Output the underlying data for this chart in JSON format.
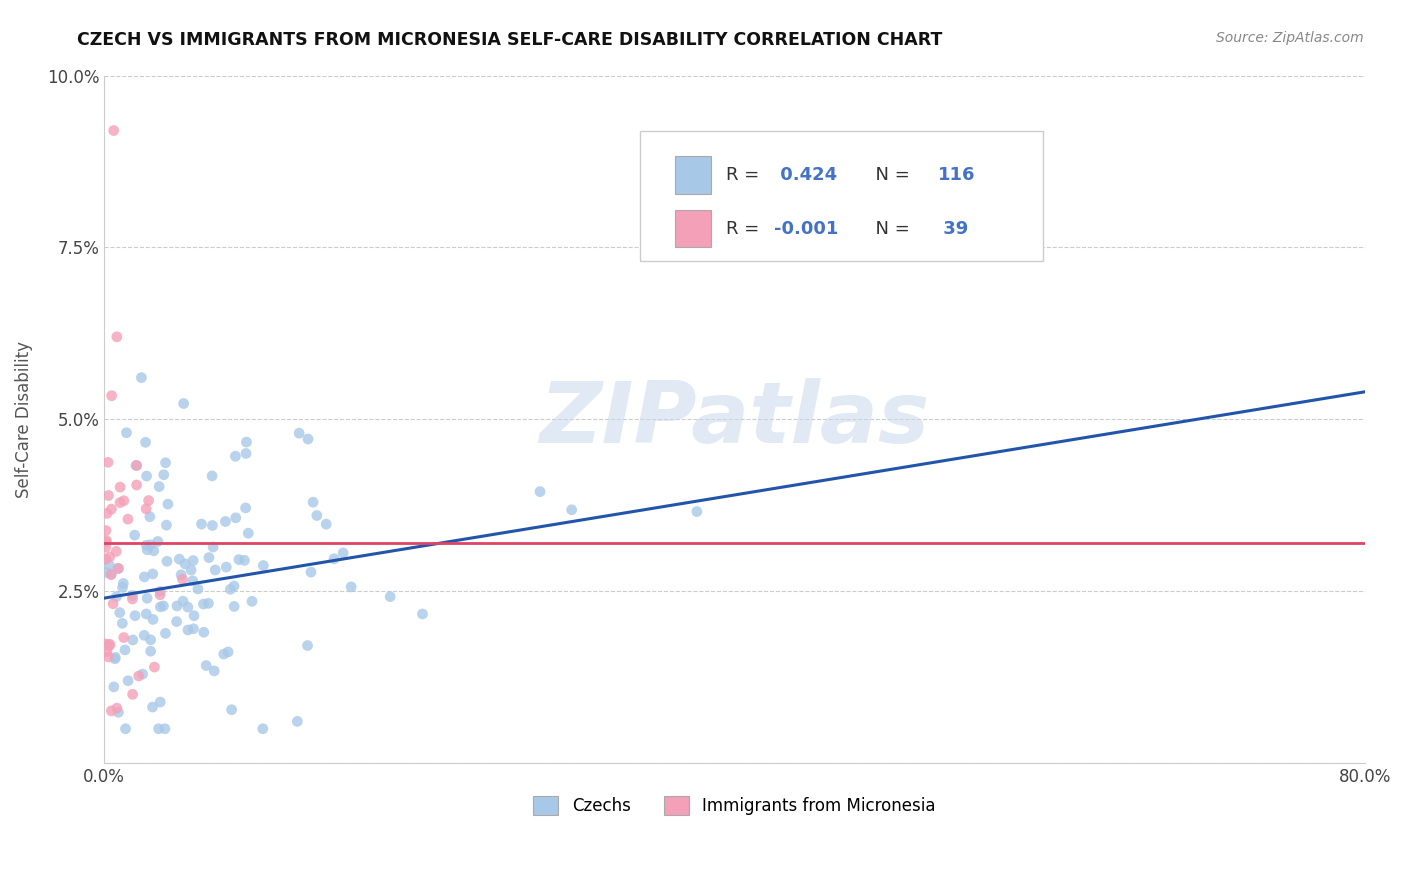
{
  "title": "CZECH VS IMMIGRANTS FROM MICRONESIA SELF-CARE DISABILITY CORRELATION CHART",
  "source": "Source: ZipAtlas.com",
  "ylabel": "Self-Care Disability",
  "xlim": [
    0,
    0.8
  ],
  "ylim": [
    0,
    0.1
  ],
  "yticks": [
    0.0,
    0.025,
    0.05,
    0.075,
    0.1
  ],
  "yticklabels": [
    "",
    "2.5%",
    "5.0%",
    "7.5%",
    "10.0%"
  ],
  "xticks": [
    0.0,
    0.1,
    0.2,
    0.3,
    0.4,
    0.5,
    0.6,
    0.7,
    0.8
  ],
  "xticklabels": [
    "0.0%",
    "",
    "",
    "",
    "",
    "",
    "",
    "",
    "80.0%"
  ],
  "czech_color": "#a8c8e8",
  "micronesia_color": "#f4a0b8",
  "czech_line_color": "#2255aa",
  "micronesia_line_color": "#dd4466",
  "czech_R": 0.424,
  "czech_N": 116,
  "micronesia_R": -0.001,
  "micronesia_N": 39,
  "background_color": "#ffffff",
  "grid_color": "#cccccc",
  "czech_line_x0": 0.0,
  "czech_line_y0": 0.024,
  "czech_line_x1": 0.8,
  "czech_line_y1": 0.054,
  "micro_line_x0": 0.0,
  "micro_line_y0": 0.032,
  "micro_line_x1": 0.8,
  "micro_line_y1": 0.032
}
